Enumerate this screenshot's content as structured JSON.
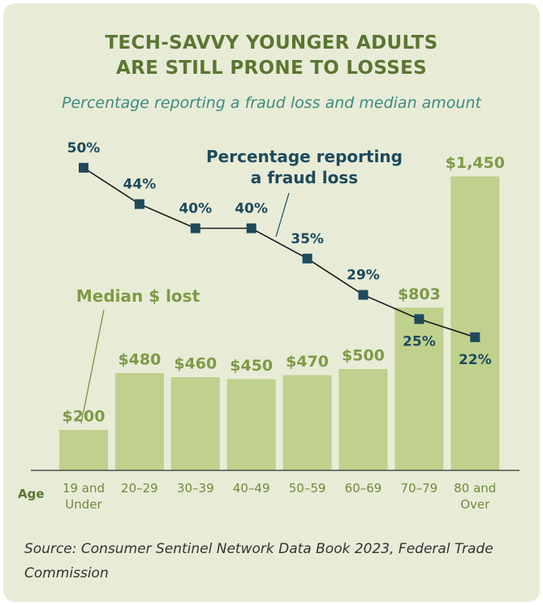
{
  "chart_data": {
    "type": "bar",
    "title": "TECH-SAVVY YOUNGER ADULTS\nARE STILL PRONE TO LOSSES",
    "subtitle": "Percentage reporting a fraud loss and median amount",
    "x_label": "Age",
    "categories": [
      "19 and\nUnder",
      "20–29",
      "30–39",
      "40–49",
      "50–59",
      "60–69",
      "70–79",
      "80 and\nOver"
    ],
    "series": [
      {
        "name": "Median $ lost",
        "color": "#bfd18c",
        "values": [
          200,
          480,
          460,
          450,
          470,
          500,
          803,
          1450
        ],
        "value_labels": [
          "$200",
          "$480",
          "$460",
          "$450",
          "$470",
          "$500",
          "$803",
          "$1,450"
        ]
      },
      {
        "name": "Percentage reporting\na fraud loss",
        "type": "line",
        "axis": "y2",
        "color": "#1d4a5c",
        "values": [
          50,
          44,
          40,
          40,
          35,
          29,
          25,
          22
        ],
        "value_labels": [
          "50%",
          "44%",
          "40%",
          "40%",
          "35%",
          "29%",
          "25%",
          "22%"
        ]
      }
    ],
    "ylim": [
      0,
      1600
    ],
    "y2lim": [
      0,
      53.6
    ],
    "source": "Source: Consumer Sentinel Network Data Book 2023, Federal Trade Commission"
  }
}
